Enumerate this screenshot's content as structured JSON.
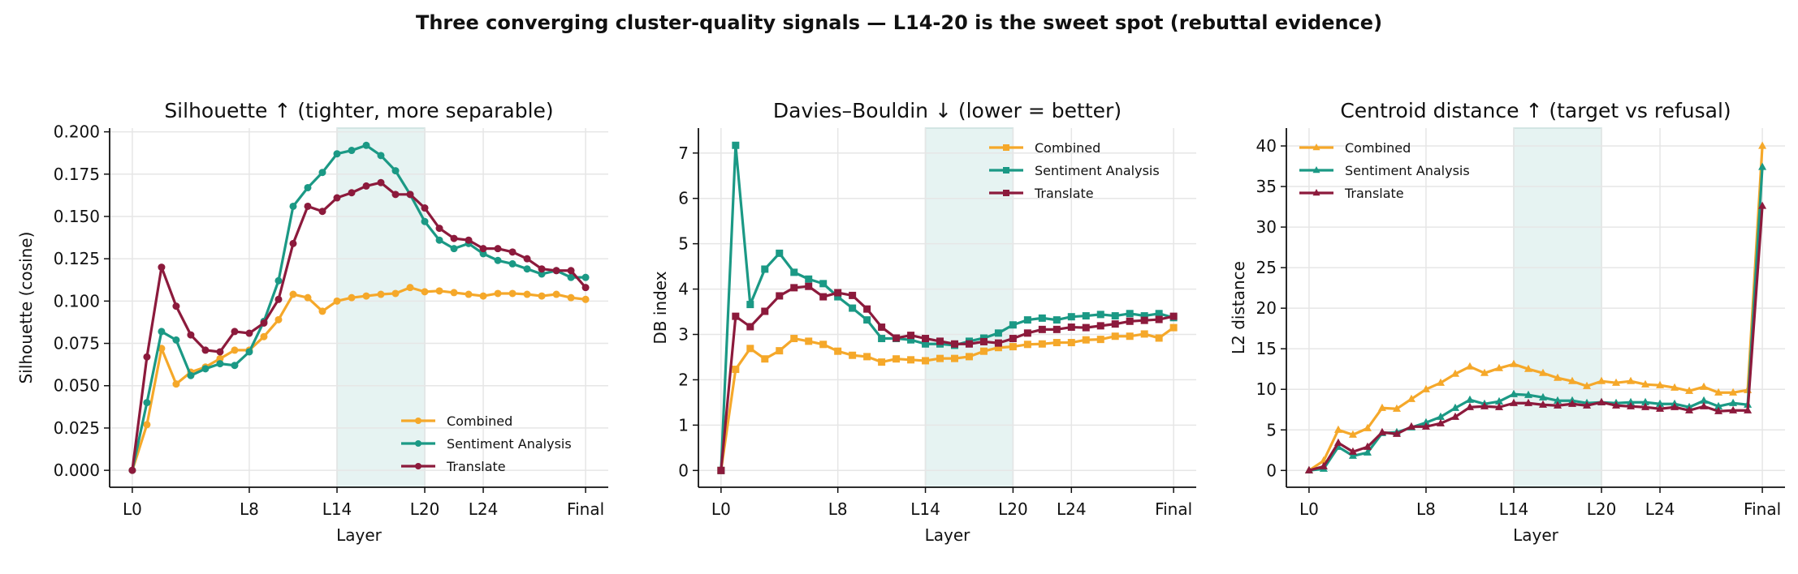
{
  "figure_title": "Three converging cluster-quality signals — L14-20 is the sweet spot (rebuttal evidence)",
  "colors": {
    "Combined": "#f5a82a",
    "Sentiment Analysis": "#1b9985",
    "Translate": "#8c1a3c",
    "highlight": "#d5eae8",
    "grid": "#e6e6e6"
  },
  "chart_data": [
    {
      "type": "line",
      "title": "Silhouette ↑ (tighter, more separable)",
      "xlabel": "Layer",
      "ylabel": "Silhouette (cosine)",
      "marker": "circle",
      "legend": "lower-right",
      "grid": true,
      "highlight_range": [
        14,
        20
      ],
      "x": [
        0,
        1,
        2,
        3,
        4,
        5,
        6,
        7,
        8,
        9,
        10,
        11,
        12,
        13,
        14,
        15,
        16,
        17,
        18,
        19,
        20,
        21,
        22,
        23,
        24,
        25,
        26,
        27,
        28,
        29,
        30,
        31
      ],
      "xticks": [
        0,
        8,
        14,
        20,
        24,
        31
      ],
      "xticklabels": [
        "L0",
        "L8",
        "L14",
        "L20",
        "L24",
        "Final"
      ],
      "xlim": [
        -1.55,
        32.55
      ],
      "ylim": [
        -0.01,
        0.2022
      ],
      "yticks": [
        0,
        0.025,
        0.05,
        0.075,
        0.1,
        0.125,
        0.15,
        0.175,
        0.2
      ],
      "yticklabels": [
        "0.000",
        "0.025",
        "0.050",
        "0.075",
        "0.100",
        "0.125",
        "0.150",
        "0.175",
        "0.200"
      ],
      "series": [
        {
          "name": "Combined",
          "values": [
            0,
            0.027,
            0.072,
            0.051,
            0.058,
            0.061,
            0.066,
            0.071,
            0.071,
            0.079,
            0.089,
            0.104,
            0.102,
            0.094,
            0.1,
            0.102,
            0.103,
            0.104,
            0.1045,
            0.108,
            0.1055,
            0.106,
            0.105,
            0.104,
            0.103,
            0.1045,
            0.1045,
            0.104,
            0.103,
            0.104,
            0.102,
            0.101
          ]
        },
        {
          "name": "Sentiment Analysis",
          "values": [
            0,
            0.04,
            0.082,
            0.077,
            0.056,
            0.06,
            0.063,
            0.062,
            0.07,
            0.088,
            0.112,
            0.156,
            0.167,
            0.176,
            0.187,
            0.189,
            0.192,
            0.186,
            0.177,
            0.163,
            0.147,
            0.136,
            0.131,
            0.134,
            0.128,
            0.124,
            0.122,
            0.119,
            0.116,
            0.118,
            0.114,
            0.114
          ]
        },
        {
          "name": "Translate",
          "values": [
            0,
            0.067,
            0.12,
            0.097,
            0.08,
            0.071,
            0.07,
            0.082,
            0.081,
            0.087,
            0.101,
            0.134,
            0.156,
            0.153,
            0.161,
            0.164,
            0.168,
            0.17,
            0.163,
            0.163,
            0.155,
            0.143,
            0.137,
            0.136,
            0.131,
            0.131,
            0.129,
            0.125,
            0.119,
            0.118,
            0.118,
            0.108
          ]
        }
      ]
    },
    {
      "type": "line",
      "title": "Davies–Bouldin ↓ (lower = better)",
      "xlabel": "Layer",
      "ylabel": "DB index",
      "marker": "square",
      "legend": "upper-right",
      "grid": true,
      "highlight_range": [
        14,
        20
      ],
      "x": [
        0,
        1,
        2,
        3,
        4,
        5,
        6,
        7,
        8,
        9,
        10,
        11,
        12,
        13,
        14,
        15,
        16,
        17,
        18,
        19,
        20,
        21,
        22,
        23,
        24,
        25,
        26,
        27,
        28,
        29,
        30,
        31
      ],
      "xticks": [
        0,
        8,
        14,
        20,
        24,
        31
      ],
      "xticklabels": [
        "L0",
        "L8",
        "L14",
        "L20",
        "L24",
        "Final"
      ],
      "xlim": [
        -1.55,
        32.55
      ],
      "ylim": [
        -0.37,
        7.55
      ],
      "yticks": [
        0,
        1,
        2,
        3,
        4,
        5,
        6,
        7
      ],
      "yticklabels": [
        "0",
        "1",
        "2",
        "3",
        "4",
        "5",
        "6",
        "7"
      ],
      "series": [
        {
          "name": "Combined",
          "values": [
            0,
            2.23,
            2.69,
            2.46,
            2.64,
            2.91,
            2.85,
            2.78,
            2.63,
            2.54,
            2.51,
            2.39,
            2.46,
            2.44,
            2.42,
            2.47,
            2.47,
            2.51,
            2.63,
            2.71,
            2.73,
            2.78,
            2.79,
            2.82,
            2.82,
            2.88,
            2.89,
            2.96,
            2.96,
            3.01,
            2.92,
            3.15
          ]
        },
        {
          "name": "Sentiment Analysis",
          "values": [
            0,
            7.17,
            3.66,
            4.44,
            4.79,
            4.37,
            4.22,
            4.12,
            3.83,
            3.58,
            3.32,
            2.91,
            2.91,
            2.88,
            2.79,
            2.79,
            2.76,
            2.85,
            2.92,
            3.03,
            3.21,
            3.32,
            3.36,
            3.32,
            3.39,
            3.41,
            3.44,
            3.41,
            3.46,
            3.41,
            3.46,
            3.37
          ]
        },
        {
          "name": "Translate",
          "values": [
            0,
            3.4,
            3.17,
            3.51,
            3.85,
            4.03,
            4.06,
            3.83,
            3.92,
            3.86,
            3.56,
            3.16,
            2.92,
            2.98,
            2.91,
            2.85,
            2.79,
            2.79,
            2.84,
            2.81,
            2.91,
            3.03,
            3.11,
            3.11,
            3.16,
            3.15,
            3.19,
            3.23,
            3.29,
            3.31,
            3.33,
            3.4
          ]
        }
      ]
    },
    {
      "type": "line",
      "title": "Centroid distance ↑ (target vs refusal)",
      "xlabel": "Layer",
      "ylabel": "L2 distance",
      "marker": "triangle",
      "legend": "upper-left",
      "grid": true,
      "highlight_range": [
        14,
        20
      ],
      "x": [
        0,
        1,
        2,
        3,
        4,
        5,
        6,
        7,
        8,
        9,
        10,
        11,
        12,
        13,
        14,
        15,
        16,
        17,
        18,
        19,
        20,
        21,
        22,
        23,
        24,
        25,
        26,
        27,
        28,
        29,
        30,
        31
      ],
      "xticks": [
        0,
        8,
        14,
        20,
        24,
        31
      ],
      "xticklabels": [
        "L0",
        "L8",
        "L14",
        "L20",
        "L24",
        "Final"
      ],
      "xlim": [
        -1.55,
        32.55
      ],
      "ylim": [
        -2.07,
        42.2
      ],
      "yticks": [
        0,
        5,
        10,
        15,
        20,
        25,
        30,
        35,
        40
      ],
      "yticklabels": [
        "0",
        "5",
        "10",
        "15",
        "20",
        "25",
        "30",
        "35",
        "40"
      ],
      "series": [
        {
          "name": "Combined",
          "values": [
            0,
            1.2,
            5.0,
            4.4,
            5.2,
            7.7,
            7.6,
            8.8,
            10.0,
            10.8,
            11.9,
            12.8,
            12.0,
            12.6,
            13.1,
            12.5,
            12.0,
            11.4,
            11.0,
            10.4,
            11.0,
            10.8,
            11.0,
            10.6,
            10.5,
            10.2,
            9.8,
            10.3,
            9.6,
            9.6,
            9.9,
            40.0
          ]
        },
        {
          "name": "Sentiment Analysis",
          "values": [
            0,
            0.2,
            2.9,
            1.8,
            2.2,
            4.6,
            4.7,
            5.3,
            5.9,
            6.6,
            7.7,
            8.7,
            8.2,
            8.5,
            9.4,
            9.3,
            9.0,
            8.6,
            8.6,
            8.3,
            8.4,
            8.3,
            8.4,
            8.4,
            8.2,
            8.2,
            7.8,
            8.6,
            7.9,
            8.3,
            8.1,
            37.4
          ]
        },
        {
          "name": "Translate",
          "values": [
            0,
            0.5,
            3.4,
            2.3,
            2.9,
            4.7,
            4.5,
            5.4,
            5.4,
            5.8,
            6.6,
            7.8,
            7.9,
            7.8,
            8.3,
            8.3,
            8.1,
            8.0,
            8.2,
            8.0,
            8.4,
            8.0,
            7.9,
            7.8,
            7.6,
            7.8,
            7.4,
            7.9,
            7.3,
            7.4,
            7.4,
            32.6
          ]
        }
      ]
    }
  ]
}
